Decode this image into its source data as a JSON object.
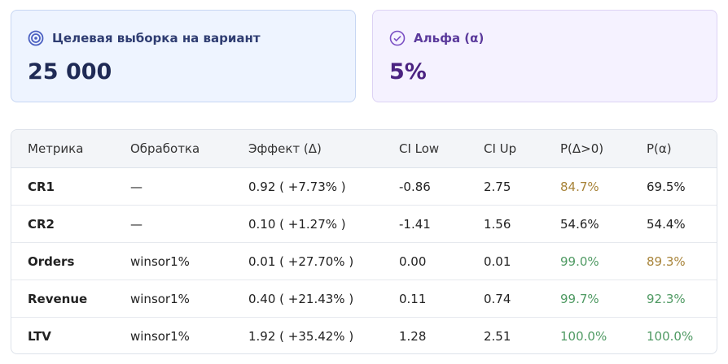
{
  "cards": [
    {
      "label": "Целевая выборка на вариант",
      "value": "25 000"
    },
    {
      "label": "Альфа (α)",
      "value": "5%"
    }
  ],
  "table": {
    "header": [
      "Метрика",
      "Обработка",
      "Эффект (Δ)",
      "CI Low",
      "CI Up",
      "P(Δ>0)",
      "P(α)"
    ],
    "rows": [
      [
        "CR1",
        "—",
        "0.92 ( +7.73% )",
        "-0.86",
        "2.75",
        "84.7%",
        "69.5%"
      ],
      [
        "CR2",
        "—",
        "0.10 ( +1.27% )",
        "-1.41",
        "1.56",
        "54.6%",
        "54.4%"
      ],
      [
        "Orders",
        "winsor1%",
        "0.01 ( +27.70% )",
        "0.00",
        "0.01",
        "99.0%",
        "89.3%"
      ],
      [
        "Revenue",
        "winsor1%",
        "0.40 ( +21.43% )",
        "0.11",
        "0.74",
        "99.7%",
        "92.3%"
      ],
      [
        "LTV",
        "winsor1%",
        "1.92 ( +35.42% )",
        "1.28",
        "2.51",
        "100.0%",
        "100.0%"
      ]
    ]
  }
}
